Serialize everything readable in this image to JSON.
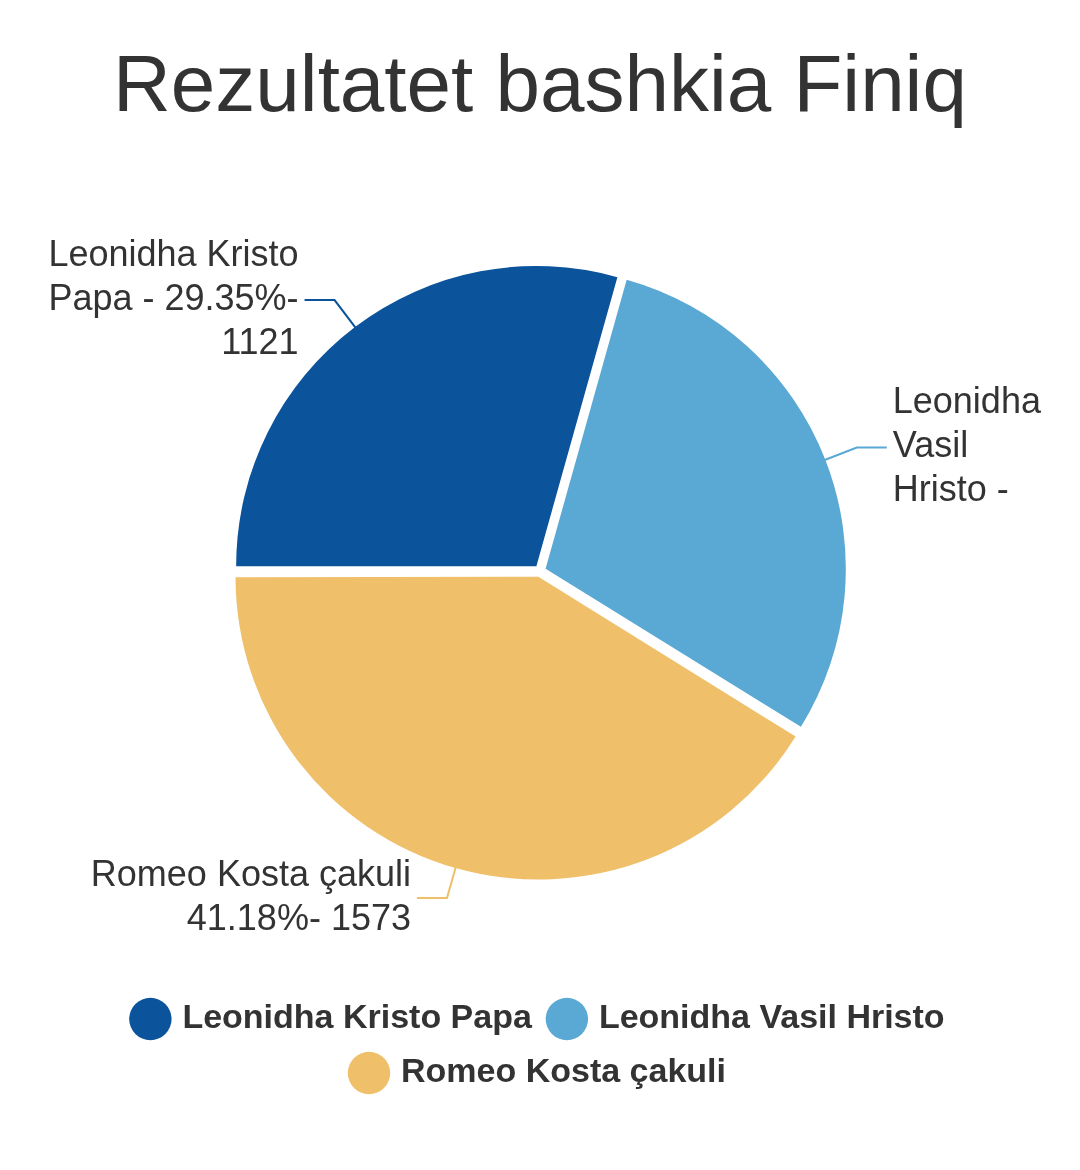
{
  "chart_data": {
    "type": "pie",
    "title": "Rezultatet bashkia Finiq",
    "categories": [
      "Leonidha Kristo Papa",
      "Leonidha Vasil Hristo",
      "Romeo Kosta çakuli"
    ],
    "values": [
      29.35,
      29.47,
      41.18
    ],
    "colors": [
      "#0b539b",
      "#5aa8d4",
      "#efbf69"
    ],
    "annotations": [
      "Leonidha Kristo Papa - 29.35%- 1121",
      "Leonidha Vasil Hristo -",
      "Romeo Kosta çakuli 41.18%- 1573"
    ],
    "legend": "bottom"
  }
}
